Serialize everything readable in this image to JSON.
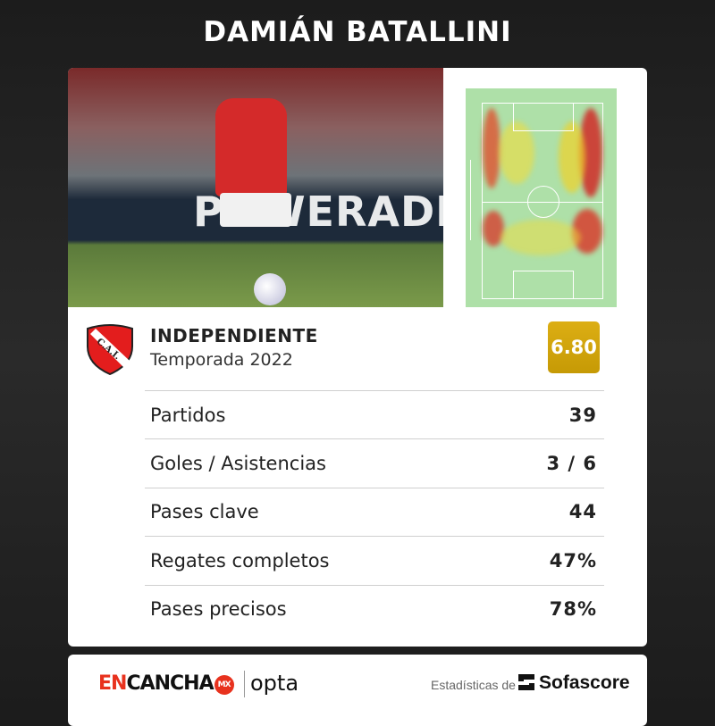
{
  "header": {
    "player_name": "DAMIÁN BATALLINI"
  },
  "photo": {
    "banner_text": "POWERADE"
  },
  "team": {
    "name": "INDEPENDIENTE",
    "crest_text": "C.A.I.",
    "season": "Temporada 2022",
    "rating": "6.80",
    "rating_color": "#d4a20a"
  },
  "stats": [
    {
      "label": "Partidos",
      "value": "39"
    },
    {
      "label": "Goles / Asistencias",
      "value": "3 / 6"
    },
    {
      "label": "Pases clave",
      "value": "44"
    },
    {
      "label": "Regates completos",
      "value": "47%"
    },
    {
      "label": "Pases precisos",
      "value": "78%"
    }
  ],
  "footer": {
    "brand_red": "EN",
    "brand_black": "CANCHA",
    "brand_badge": "MX",
    "partner": "opta",
    "stats_by": "Estadísticas de",
    "provider": "Sofascore"
  }
}
